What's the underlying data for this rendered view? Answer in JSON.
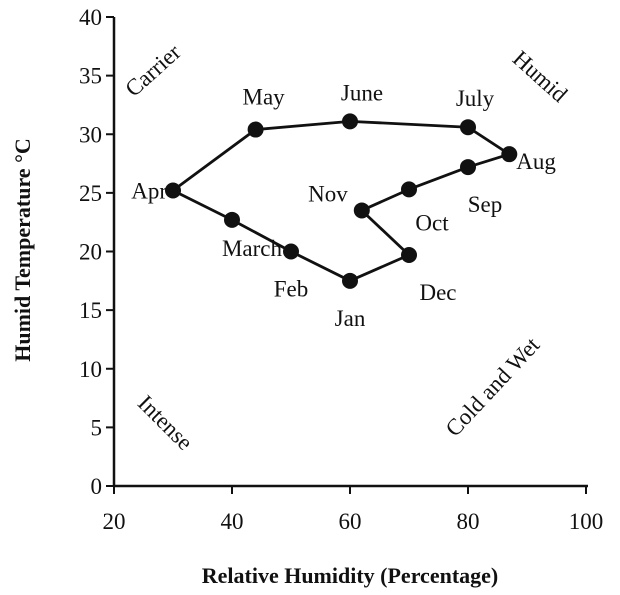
{
  "chart_data": {
    "type": "line",
    "xlabel": "Relative Humidity (Percentage)",
    "ylabel": "Humid Temperature °C",
    "xlim": [
      20,
      100
    ],
    "ylim": [
      0,
      40
    ],
    "xticks": [
      "20",
      "40",
      "60",
      "80",
      "100"
    ],
    "yticks": [
      "0",
      "5",
      "10",
      "15",
      "20",
      "25",
      "30",
      "35",
      "40"
    ],
    "grid": false,
    "closed": true,
    "points": [
      {
        "label": "Jan",
        "x": 60,
        "y": 17.5
      },
      {
        "label": "Feb",
        "x": 50,
        "y": 20
      },
      {
        "label": "March",
        "x": 40,
        "y": 22.7
      },
      {
        "label": "Apr",
        "x": 30,
        "y": 25.2
      },
      {
        "label": "May",
        "x": 44,
        "y": 30.4
      },
      {
        "label": "June",
        "x": 60,
        "y": 31.1
      },
      {
        "label": "July",
        "x": 80,
        "y": 30.6
      },
      {
        "label": "Aug",
        "x": 87,
        "y": 28.3
      },
      {
        "label": "Sep",
        "x": 80,
        "y": 27.2
      },
      {
        "label": "Oct",
        "x": 70,
        "y": 25.3
      },
      {
        "label": "Nov",
        "x": 62,
        "y": 23.5
      },
      {
        "label": "Dec",
        "x": 70,
        "y": 19.7
      }
    ],
    "regions": [
      "Carrier",
      "Humid",
      "Intense",
      "Cold and Wet"
    ],
    "color": "#111111"
  }
}
